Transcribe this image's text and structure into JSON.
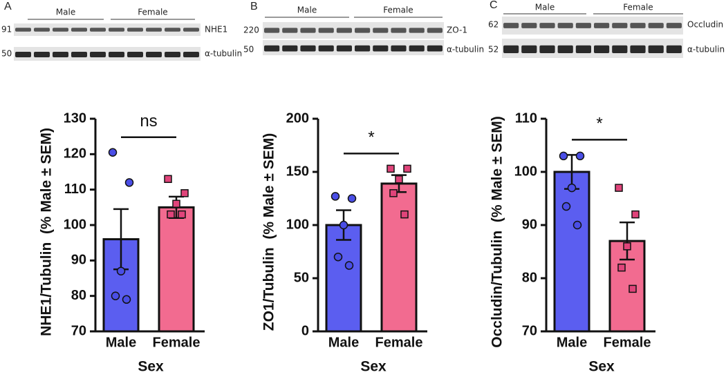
{
  "blots": [
    {
      "panel": "A",
      "groups": [
        "Male",
        "Female"
      ],
      "markers": [
        91,
        50
      ],
      "proteins": [
        "NHE1",
        "α-tubulin"
      ]
    },
    {
      "panel": "B",
      "groups": [
        "Male",
        "Female"
      ],
      "markers": [
        220,
        50
      ],
      "proteins": [
        "ZO-1",
        "α-tubulin"
      ]
    },
    {
      "panel": "C",
      "groups": [
        "Male",
        "Female"
      ],
      "markers": [
        62,
        52
      ],
      "proteins": [
        "Occludin",
        "α-tubulin"
      ]
    }
  ],
  "chart_data": [
    {
      "type": "bar",
      "y_label": "NHE1/Tubulin  (% Male ± SEM)",
      "x_label": "Sex",
      "annotation": "ns",
      "categories": [
        "Male",
        "Female"
      ],
      "values": [
        96,
        105
      ],
      "errors": [
        8.5,
        3
      ],
      "points": [
        [
          120.5,
          112,
          87,
          80,
          79
        ],
        [
          113,
          109,
          106,
          103,
          103
        ]
      ],
      "colors": [
        "#5b5ef0",
        "#f26b90"
      ],
      "point_colors": [
        "#4a4ee6",
        "#e0447a"
      ],
      "markers": [
        "circle",
        "square"
      ],
      "ylim": [
        70,
        130
      ],
      "yticks": [
        70,
        80,
        90,
        100,
        110,
        120,
        130
      ]
    },
    {
      "type": "bar",
      "y_label": "ZO1/Tubulin  (% Male ± SEM)",
      "x_label": "Sex",
      "annotation": "*",
      "categories": [
        "Male",
        "Female"
      ],
      "values": [
        100,
        139
      ],
      "errors": [
        14,
        8
      ],
      "points": [
        [
          127,
          125,
          100,
          70,
          62
        ],
        [
          153,
          153,
          143,
          130,
          110
        ]
      ],
      "colors": [
        "#5b5ef0",
        "#f26b90"
      ],
      "point_colors": [
        "#4a4ee6",
        "#e0447a"
      ],
      "markers": [
        "circle",
        "square"
      ],
      "ylim": [
        0,
        200
      ],
      "yticks": [
        0,
        50,
        100,
        150,
        200
      ]
    },
    {
      "type": "bar",
      "y_label": "Occludin/Tubulin  (% Male ± SEM)",
      "x_label": "Sex",
      "annotation": "*",
      "categories": [
        "Male",
        "Female"
      ],
      "values": [
        100,
        87
      ],
      "errors": [
        3.2,
        3.5
      ],
      "points": [
        [
          103,
          103,
          97,
          93.5,
          90
        ],
        [
          97,
          92,
          86,
          82,
          78
        ]
      ],
      "colors": [
        "#5b5ef0",
        "#f26b90"
      ],
      "point_colors": [
        "#4a4ee6",
        "#e0447a"
      ],
      "markers": [
        "circle",
        "square"
      ],
      "ylim": [
        70,
        110
      ],
      "yticks": [
        70,
        80,
        90,
        100,
        110
      ]
    }
  ]
}
